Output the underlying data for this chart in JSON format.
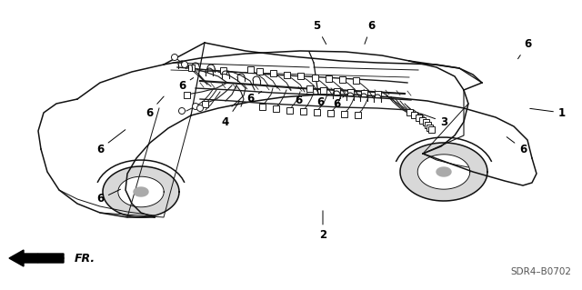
{
  "bg_color": "#ffffff",
  "diagram_code": "SDR4–B0702",
  "fr_label": "FR.",
  "code_fontsize": 8,
  "image_data": ""
}
